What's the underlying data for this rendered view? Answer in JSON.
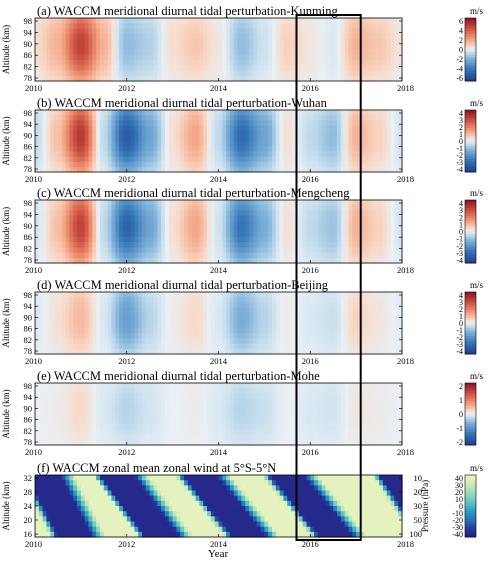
{
  "chart_data": {
    "type": "heatmap",
    "x_ticks": [
      "2010",
      "2012",
      "2014",
      "2016",
      "2018"
    ],
    "x_range": [
      2010,
      2018
    ],
    "xlabel": "Year",
    "highlight_box": {
      "x_range": [
        2015.7,
        2017.1
      ]
    },
    "panels": [
      {
        "title": "(a) WACCM meridional diurnal tidal perturbation-Kunming",
        "ylabel": "Altitude (km)",
        "y_ticks": [
          "98",
          "94",
          "90",
          "86",
          "82",
          "78"
        ],
        "unit": "m/s",
        "cbar_ticks": [
          "6",
          "4",
          "2",
          "0",
          "-2",
          "-4",
          "-6"
        ],
        "cmap": "RdBu",
        "vmax": 6,
        "x": [
          2010.0,
          2010.5,
          2011.0,
          2011.5,
          2012.0,
          2012.5,
          2013.0,
          2013.5,
          2014.0,
          2014.5,
          2015.0,
          2015.5,
          2016.0,
          2016.5,
          2017.0,
          2017.5,
          2018.0
        ],
        "values": [
          0.5,
          1.5,
          4.5,
          1.5,
          -1.5,
          -1.0,
          0.5,
          1.0,
          0.3,
          -1.5,
          -0.5,
          0.8,
          0.3,
          -0.3,
          1.5,
          1.0,
          0.3
        ]
      },
      {
        "title": "(b) WACCM meridional diurnal tidal perturbation-Wuhan",
        "ylabel": "Altitude (km)",
        "y_ticks": [
          "98",
          "94",
          "90",
          "86",
          "82",
          "78"
        ],
        "unit": "m/s",
        "cbar_ticks": [
          "4",
          "3",
          "2",
          "1",
          "0",
          "-1",
          "-2",
          "-3",
          "-4"
        ],
        "cmap": "RdBu",
        "vmax": 4,
        "x": [
          2010.0,
          2010.5,
          2011.0,
          2011.5,
          2012.0,
          2012.5,
          2013.0,
          2013.5,
          2014.0,
          2014.5,
          2015.0,
          2015.5,
          2016.0,
          2016.5,
          2017.0,
          2017.5,
          2018.0
        ],
        "values": [
          -0.5,
          0.8,
          3.2,
          -0.5,
          -3.2,
          -1.5,
          0.3,
          1.2,
          -0.5,
          -2.8,
          -1.5,
          0.3,
          -0.5,
          -1.0,
          1.0,
          0.5,
          -0.3
        ]
      },
      {
        "title": "(c) WACCM meridional diurnal tidal perturbation-Mengcheng",
        "ylabel": "Altitude (km)",
        "y_ticks": [
          "98",
          "94",
          "90",
          "86",
          "82",
          "78"
        ],
        "unit": "m/s",
        "cbar_ticks": [
          "4",
          "3",
          "2",
          "1",
          "0",
          "-1",
          "-2",
          "-3",
          "-4"
        ],
        "cmap": "RdBu",
        "vmax": 4,
        "x": [
          2010.0,
          2010.5,
          2011.0,
          2011.5,
          2012.0,
          2012.5,
          2013.0,
          2013.5,
          2014.0,
          2014.5,
          2015.0,
          2015.5,
          2016.0,
          2016.5,
          2017.0,
          2017.5,
          2018.0
        ],
        "values": [
          -0.3,
          0.8,
          3.0,
          -0.5,
          -3.0,
          -1.5,
          0.3,
          1.2,
          -0.3,
          -2.6,
          -1.3,
          0.3,
          -0.5,
          -0.9,
          1.0,
          0.5,
          -0.3
        ]
      },
      {
        "title": "(d) WACCM meridional diurnal tidal perturbation-Beijing",
        "ylabel": "Altitude (km)",
        "y_ticks": [
          "98",
          "94",
          "90",
          "86",
          "82",
          "78"
        ],
        "unit": "m/s",
        "cbar_ticks": [
          "4",
          "3",
          "2",
          "1",
          "0",
          "-1",
          "-2",
          "-3",
          "-4"
        ],
        "cmap": "RdBu",
        "vmax": 4,
        "x": [
          2010.0,
          2010.5,
          2011.0,
          2011.5,
          2012.0,
          2012.5,
          2013.0,
          2013.5,
          2014.0,
          2014.5,
          2015.0,
          2015.5,
          2016.0,
          2016.5,
          2017.0,
          2017.5,
          2018.0
        ],
        "values": [
          -0.2,
          0.3,
          0.9,
          -0.2,
          -1.6,
          -0.6,
          0.1,
          0.4,
          -0.2,
          -1.3,
          -0.6,
          0.1,
          -0.2,
          -0.4,
          0.5,
          0.2,
          -0.1
        ]
      },
      {
        "title": "(e) WACCM meridional diurnal tidal perturbation-Mohe",
        "ylabel": "Altitude (km)",
        "y_ticks": [
          "98",
          "94",
          "90",
          "86",
          "82",
          "78"
        ],
        "unit": "m/s",
        "cbar_ticks": [
          "2",
          "1",
          "0",
          "-1",
          "-2"
        ],
        "cmap": "RdBu",
        "vmax": 2,
        "x": [
          2010.0,
          2010.5,
          2011.0,
          2011.5,
          2012.0,
          2012.5,
          2013.0,
          2013.5,
          2014.0,
          2014.5,
          2015.0,
          2015.5,
          2016.0,
          2016.5,
          2017.0,
          2017.5,
          2018.0
        ],
        "values": [
          0.0,
          0.05,
          0.2,
          -0.1,
          -0.3,
          -0.15,
          0.0,
          0.05,
          -0.1,
          -0.3,
          -0.2,
          0.0,
          -0.1,
          -0.15,
          0.1,
          0.05,
          0.0
        ]
      },
      {
        "title": "(f)  WACCM zonal mean zonal wind at 5°S-5°N",
        "ylabel": "Altitude (km)",
        "y_ticks": [
          "32",
          "28",
          "24",
          "20",
          "16"
        ],
        "right_label": "Pressure (hPa)",
        "right_ticks": [
          "10",
          "20",
          "30",
          "50",
          "100"
        ],
        "unit": "m/s",
        "cbar_ticks": [
          "40",
          "30",
          "20",
          "10",
          "0",
          "-10",
          "-20",
          "-30",
          "-40"
        ],
        "cmap": "qbo",
        "vmax": 40,
        "easterly_fronts": [
          {
            "x_top": 2009.8,
            "x_bottom": 2010.5
          },
          {
            "x_top": 2011.4,
            "x_bottom": 2012.4
          },
          {
            "x_top": 2013.2,
            "x_bottom": 2014.3
          },
          {
            "x_top": 2015.1,
            "x_bottom": 2016.2
          },
          {
            "x_top": 2017.5,
            "x_bottom": 2018.4
          }
        ]
      }
    ]
  }
}
